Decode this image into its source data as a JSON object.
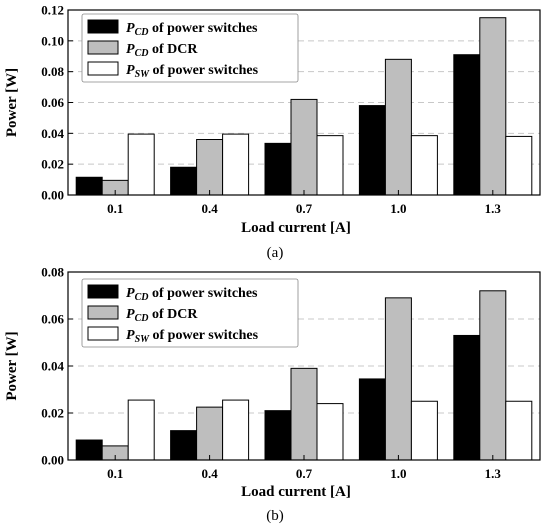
{
  "chart_data": [
    {
      "type": "bar",
      "panel": "(a)",
      "categories": [
        "0.1",
        "0.4",
        "0.7",
        "1.0",
        "1.3"
      ],
      "xlabel": "Load current [A]",
      "ylabel": "Power [W]",
      "ylim": [
        0,
        0.12
      ],
      "yticks": [
        "0.00",
        "0.02",
        "0.04",
        "0.06",
        "0.08",
        "0.10",
        "0.12"
      ],
      "grid": "horizontal dashed",
      "legend_placement": "top-left",
      "series": [
        {
          "name_main": "P",
          "name_sub": "CD",
          "name_rest": " of power switches",
          "color": "#000000",
          "values": [
            0.0115,
            0.018,
            0.0335,
            0.058,
            0.091
          ]
        },
        {
          "name_main": "P",
          "name_sub": "CD",
          "name_rest": " of DCR",
          "color": "#bebebe",
          "values": [
            0.0095,
            0.036,
            0.062,
            0.088,
            0.115
          ]
        },
        {
          "name_main": "P",
          "name_sub": "SW",
          "name_rest": " of power switches",
          "color": "#ffffff",
          "values": [
            0.0395,
            0.0395,
            0.0385,
            0.0385,
            0.038
          ]
        }
      ]
    },
    {
      "type": "bar",
      "panel": "(b)",
      "categories": [
        "0.1",
        "0.4",
        "0.7",
        "1.0",
        "1.3"
      ],
      "xlabel": "Load current [A]",
      "ylabel": "Power [W]",
      "ylim": [
        0,
        0.08
      ],
      "yticks": [
        "0.00",
        "0.02",
        "0.04",
        "0.06",
        "0.08"
      ],
      "grid": "horizontal dashed",
      "legend_placement": "top-left",
      "series": [
        {
          "name_main": "P",
          "name_sub": "CD",
          "name_rest": " of power switches",
          "color": "#000000",
          "values": [
            0.0085,
            0.0125,
            0.021,
            0.0345,
            0.053
          ]
        },
        {
          "name_main": "P",
          "name_sub": "CD",
          "name_rest": " of DCR",
          "color": "#bebebe",
          "values": [
            0.006,
            0.0225,
            0.039,
            0.069,
            0.072
          ]
        },
        {
          "name_main": "P",
          "name_sub": "SW",
          "name_rest": " of power switches",
          "color": "#ffffff",
          "values": [
            0.0255,
            0.0255,
            0.024,
            0.025,
            0.025
          ]
        }
      ]
    }
  ]
}
